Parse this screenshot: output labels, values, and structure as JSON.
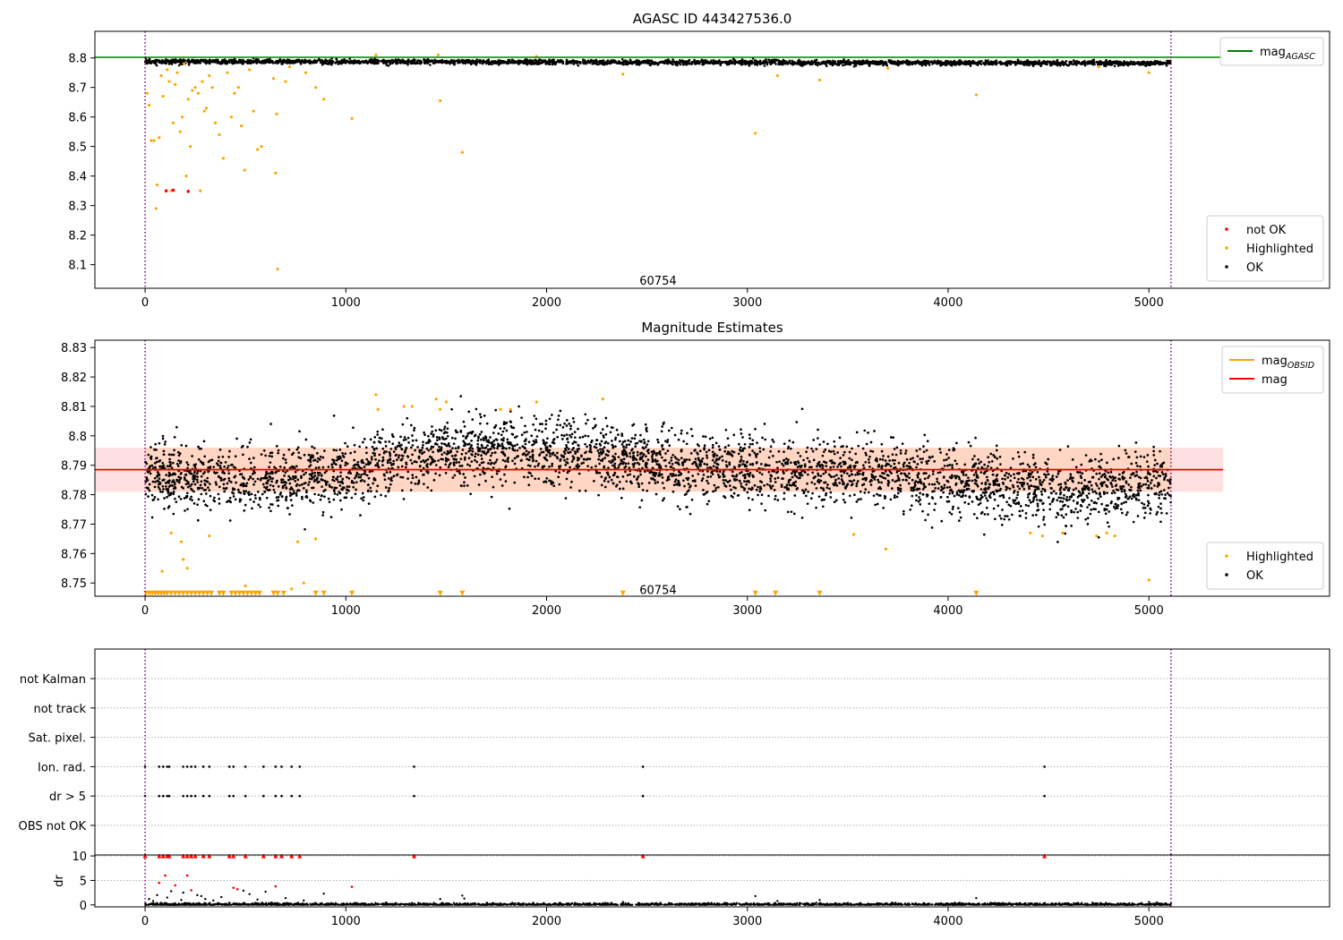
{
  "chart_data": [
    {
      "type": "scatter",
      "title": "AGASC ID 443427536.0",
      "xlabel": "",
      "ylabel": "",
      "xlim": [
        -250,
        5900
      ],
      "ylim": [
        8.02,
        8.89
      ],
      "x_ticks": [
        0,
        1000,
        2000,
        3000,
        4000,
        5000
      ],
      "y_ticks": [
        8.1,
        8.2,
        8.3,
        8.4,
        8.5,
        8.6,
        8.7,
        8.8
      ],
      "hline": {
        "value": 8.802,
        "x_range": [
          -250,
          5370
        ],
        "color": "#008000"
      },
      "vlines": [
        0,
        5110
      ],
      "annotation": {
        "text": "60754",
        "x": 2555,
        "y": 8.045
      },
      "legends": [
        {
          "position": "top-right",
          "entries": [
            {
              "label": "mag",
              "sub": "AGASC",
              "color": "#008000",
              "kind": "line"
            }
          ]
        },
        {
          "position": "bottom-right",
          "entries": [
            {
              "label": "not OK",
              "color": "#ff0000",
              "kind": "dot"
            },
            {
              "label": "Highlighted",
              "color": "#ffa500",
              "kind": "dot"
            },
            {
              "label": "OK",
              "color": "#000000",
              "kind": "dot"
            }
          ]
        }
      ],
      "series": [
        {
          "name": "not OK",
          "color": "#ff0000",
          "points": [
            [
              105,
              8.35
            ],
            [
              215,
              8.348
            ],
            [
              140,
              8.352
            ]
          ]
        },
        {
          "name": "Highlighted",
          "color": "#ffa500",
          "points": [
            [
              10,
              8.68
            ],
            [
              20,
              8.64
            ],
            [
              30,
              8.52
            ],
            [
              45,
              8.52
            ],
            [
              55,
              8.29
            ],
            [
              60,
              8.37
            ],
            [
              70,
              8.53
            ],
            [
              80,
              8.74
            ],
            [
              90,
              8.67
            ],
            [
              110,
              8.76
            ],
            [
              120,
              8.72
            ],
            [
              130,
              8.35
            ],
            [
              140,
              8.58
            ],
            [
              150,
              8.71
            ],
            [
              160,
              8.75
            ],
            [
              175,
              8.55
            ],
            [
              185,
              8.6
            ],
            [
              195,
              8.78
            ],
            [
              205,
              8.4
            ],
            [
              215,
              8.66
            ],
            [
              225,
              8.5
            ],
            [
              235,
              8.69
            ],
            [
              250,
              8.7
            ],
            [
              265,
              8.68
            ],
            [
              275,
              8.35
            ],
            [
              285,
              8.72
            ],
            [
              295,
              8.62
            ],
            [
              305,
              8.63
            ],
            [
              320,
              8.74
            ],
            [
              335,
              8.7
            ],
            [
              350,
              8.58
            ],
            [
              370,
              8.54
            ],
            [
              390,
              8.46
            ],
            [
              410,
              8.75
            ],
            [
              430,
              8.6
            ],
            [
              445,
              8.68
            ],
            [
              465,
              8.7
            ],
            [
              480,
              8.57
            ],
            [
              495,
              8.42
            ],
            [
              520,
              8.76
            ],
            [
              540,
              8.62
            ],
            [
              560,
              8.49
            ],
            [
              580,
              8.5
            ],
            [
              640,
              8.73
            ],
            [
              650,
              8.41
            ],
            [
              655,
              8.61
            ],
            [
              660,
              8.085
            ],
            [
              700,
              8.72
            ],
            [
              720,
              8.77
            ],
            [
              800,
              8.75
            ],
            [
              850,
              8.7
            ],
            [
              890,
              8.66
            ],
            [
              1030,
              8.595
            ],
            [
              1150,
              8.81
            ],
            [
              1460,
              8.81
            ],
            [
              1470,
              8.655
            ],
            [
              1580,
              8.48
            ],
            [
              1950,
              8.805
            ],
            [
              2380,
              8.745
            ],
            [
              3040,
              8.545
            ],
            [
              3150,
              8.74
            ],
            [
              3360,
              8.725
            ],
            [
              3700,
              8.765
            ],
            [
              4140,
              8.675
            ],
            [
              4750,
              8.77
            ],
            [
              5000,
              8.75
            ]
          ]
        },
        {
          "name": "OK",
          "color": "#000000",
          "band": {
            "x_range": [
              0,
              5110
            ],
            "center": 8.788,
            "spread": 0.012
          }
        }
      ]
    },
    {
      "type": "scatter",
      "title": "Magnitude Estimates",
      "xlabel": "",
      "ylabel": "",
      "xlim": [
        -250,
        5900
      ],
      "ylim": [
        8.7455,
        8.8325
      ],
      "x_ticks": [
        0,
        1000,
        2000,
        3000,
        4000,
        5000
      ],
      "y_ticks": [
        8.75,
        8.76,
        8.77,
        8.78,
        8.79,
        8.8,
        8.81,
        8.82,
        8.83
      ],
      "mean_line": {
        "value": 8.7885,
        "x_range": [
          -250,
          5370
        ],
        "color": "#ff0000"
      },
      "obsid_line": {
        "value": 8.7885,
        "x_range": [
          0,
          5110
        ],
        "color": "#ffa500"
      },
      "bands": [
        {
          "x_range": [
            -250,
            5370
          ],
          "y_range": [
            8.781,
            8.796
          ],
          "color": "#ff0000",
          "opacity": 0.12
        },
        {
          "x_range": [
            0,
            5110
          ],
          "y_range": [
            8.781,
            8.796
          ],
          "color": "#ff8c00",
          "opacity": 0.12
        }
      ],
      "vlines": [
        0,
        5110
      ],
      "annotation": {
        "text": "60754",
        "x": 2555,
        "y": 8.7475
      },
      "legends": [
        {
          "position": "top-right",
          "entries": [
            {
              "label": "mag",
              "sub": "OBSID",
              "color": "#ffa500",
              "kind": "line"
            },
            {
              "label": "mag",
              "sub": "",
              "color": "#ff0000",
              "kind": "line"
            }
          ]
        },
        {
          "position": "bottom-right",
          "entries": [
            {
              "label": "Highlighted",
              "color": "#ffa500",
              "kind": "dot"
            },
            {
              "label": "OK",
              "color": "#000000",
              "kind": "dot"
            }
          ]
        }
      ],
      "series": [
        {
          "name": "Highlighted",
          "color": "#ffa500",
          "points": [
            [
              85,
              8.754
            ],
            [
              130,
              8.767
            ],
            [
              180,
              8.764
            ],
            [
              190,
              8.758
            ],
            [
              210,
              8.755
            ],
            [
              320,
              8.766
            ],
            [
              500,
              8.749
            ],
            [
              730,
              8.748
            ],
            [
              760,
              8.764
            ],
            [
              790,
              8.75
            ],
            [
              850,
              8.765
            ],
            [
              1150,
              8.814
            ],
            [
              1160,
              8.809
            ],
            [
              1290,
              8.81
            ],
            [
              1330,
              8.81
            ],
            [
              1450,
              8.8125
            ],
            [
              1470,
              8.809
            ],
            [
              1500,
              8.8115
            ],
            [
              1770,
              8.809
            ],
            [
              1820,
              8.809
            ],
            [
              1950,
              8.8115
            ],
            [
              2280,
              8.8125
            ],
            [
              3530,
              8.7665
            ],
            [
              3690,
              8.7615
            ],
            [
              4410,
              8.767
            ],
            [
              4470,
              8.766
            ],
            [
              4570,
              8.767
            ],
            [
              4740,
              8.766
            ],
            [
              4790,
              8.767
            ],
            [
              4830,
              8.766
            ],
            [
              5000,
              8.751
            ]
          ]
        },
        {
          "name": "Highlighted (below range)",
          "color": "#ffa500",
          "marker": "triangle-down",
          "y": 8.7465,
          "x": [
            5,
            20,
            35,
            50,
            65,
            80,
            95,
            110,
            130,
            150,
            170,
            190,
            210,
            230,
            250,
            270,
            290,
            310,
            330,
            370,
            390,
            430,
            450,
            470,
            490,
            510,
            530,
            550,
            570,
            640,
            660,
            690,
            850,
            890,
            1030,
            1470,
            1580,
            2380,
            3040,
            3140,
            3360,
            4140
          ]
        },
        {
          "name": "OK",
          "color": "#000000",
          "profile": {
            "x_range": [
              0,
              5110
            ],
            "knots": [
              [
                0,
                8.787
              ],
              [
                400,
                8.785
              ],
              [
                900,
                8.786
              ],
              [
                1200,
                8.791
              ],
              [
                1500,
                8.795
              ],
              [
                2000,
                8.794
              ],
              [
                2300,
                8.793
              ],
              [
                2700,
                8.789
              ],
              [
                3200,
                8.788
              ],
              [
                3700,
                8.787
              ],
              [
                4100,
                8.784
              ],
              [
                4600,
                8.781
              ],
              [
                5110,
                8.784
              ]
            ],
            "spread": 0.0075
          }
        }
      ]
    },
    {
      "type": "scatter",
      "title": "",
      "xlabel": "",
      "ylabel": "",
      "xlim": [
        -250,
        5900
      ],
      "x_ticks": [
        0,
        1000,
        2000,
        3000,
        4000,
        5000
      ],
      "categories": [
        "not Kalman",
        "not track",
        "Sat. pixel.",
        "Ion. rad.",
        "dr > 5",
        "OBS not OK"
      ],
      "vlines": [
        0,
        5110
      ],
      "flagged_x": [
        0,
        70,
        90,
        110,
        120,
        190,
        210,
        230,
        250,
        290,
        320,
        420,
        440,
        500,
        590,
        650,
        680,
        730,
        770,
        1340,
        2480,
        4480
      ],
      "series": [
        {
          "name": "Ion. rad.",
          "color": "#000000",
          "x_ref": "flagged_x"
        },
        {
          "name": "dr > 5",
          "color": "#000000",
          "x_ref": "flagged_x"
        }
      ]
    },
    {
      "type": "scatter",
      "title": "",
      "xlabel": "",
      "ylabel": "dr",
      "xlim": [
        -250,
        5900
      ],
      "ylim": [
        -0.4,
        10.2
      ],
      "x_ticks": [
        0,
        1000,
        2000,
        3000,
        4000,
        5000
      ],
      "y_ticks": [
        0,
        5,
        10
      ],
      "vlines": [
        0,
        5110
      ],
      "series": [
        {
          "name": "dr > 5 (clipped)",
          "color": "#ff0000",
          "marker": "triangle-up",
          "y": 10,
          "x_ref": "flagged_x"
        },
        {
          "name": "dr (large)",
          "color": "#ff0000",
          "points": [
            [
              70,
              4.5
            ],
            [
              100,
              6.0
            ],
            [
              150,
              4.0
            ],
            [
              210,
              6.0
            ],
            [
              230,
              3.0
            ],
            [
              440,
              3.5
            ],
            [
              460,
              3.2
            ],
            [
              650,
              3.8
            ],
            [
              1030,
              3.7
            ]
          ]
        },
        {
          "name": "dr",
          "color": "#000000",
          "points": [
            [
              20,
              1.2
            ],
            [
              40,
              0.8
            ],
            [
              60,
              2.0
            ],
            [
              110,
              1.5
            ],
            [
              130,
              2.8
            ],
            [
              180,
              1.0
            ],
            [
              190,
              2.5
            ],
            [
              260,
              2.0
            ],
            [
              280,
              1.8
            ],
            [
              300,
              1.2
            ],
            [
              340,
              0.9
            ],
            [
              380,
              1.6
            ],
            [
              490,
              2.9
            ],
            [
              520,
              2.2
            ],
            [
              560,
              1.1
            ],
            [
              600,
              2.7
            ],
            [
              700,
              1.4
            ],
            [
              790,
              0.9
            ],
            [
              890,
              2.3
            ],
            [
              1470,
              1.2
            ],
            [
              1580,
              1.9
            ],
            [
              1590,
              1.3
            ],
            [
              2380,
              0.6
            ],
            [
              3040,
              1.8
            ],
            [
              3150,
              0.8
            ],
            [
              3360,
              1.0
            ],
            [
              4140,
              1.4
            ],
            [
              5000,
              0.6
            ],
            [
              5040,
              0.5
            ]
          ],
          "baseline": {
            "x_range": [
              0,
              5110
            ],
            "max": 0.5
          }
        }
      ]
    }
  ]
}
